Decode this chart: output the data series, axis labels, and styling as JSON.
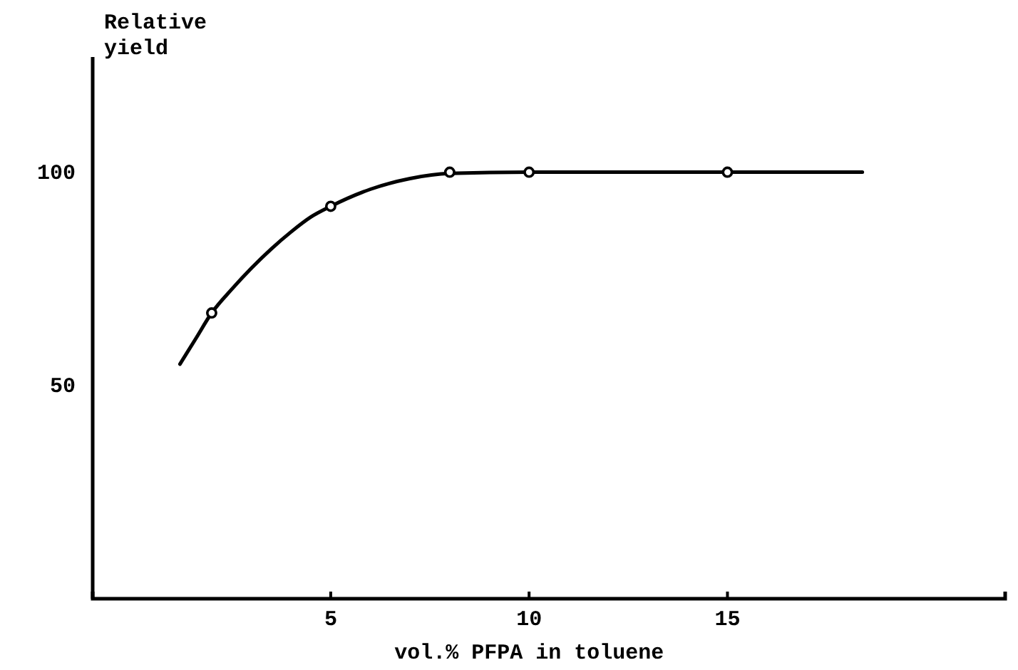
{
  "chart_data": {
    "type": "scatter",
    "xlabel": "vol.% PFPA in toluene",
    "ylabel": "Relative\nyield",
    "xlim": [
      -1,
      22
    ],
    "ylim": [
      0,
      127
    ],
    "xticks": [
      5,
      10,
      15
    ],
    "yticks": [
      50,
      100
    ],
    "marker": "circle",
    "grid": false,
    "series": [
      {
        "color": "#000000",
        "x": [
          2,
          5,
          8,
          10,
          15
        ],
        "values": [
          67,
          92,
          100,
          100,
          100
        ]
      },
      {
        "type": "line",
        "color": "#000000",
        "marker": "none",
        "x": [
          1.2,
          1.6,
          2,
          2.5,
          3,
          3.5,
          4,
          4.5,
          5,
          6,
          7,
          8,
          10,
          12,
          15,
          18.4
        ],
        "values": [
          55,
          61,
          67,
          72.5,
          77.5,
          82,
          86,
          89.5,
          92,
          96,
          98.5,
          99.7,
          100,
          100,
          100,
          100
        ]
      }
    ]
  }
}
